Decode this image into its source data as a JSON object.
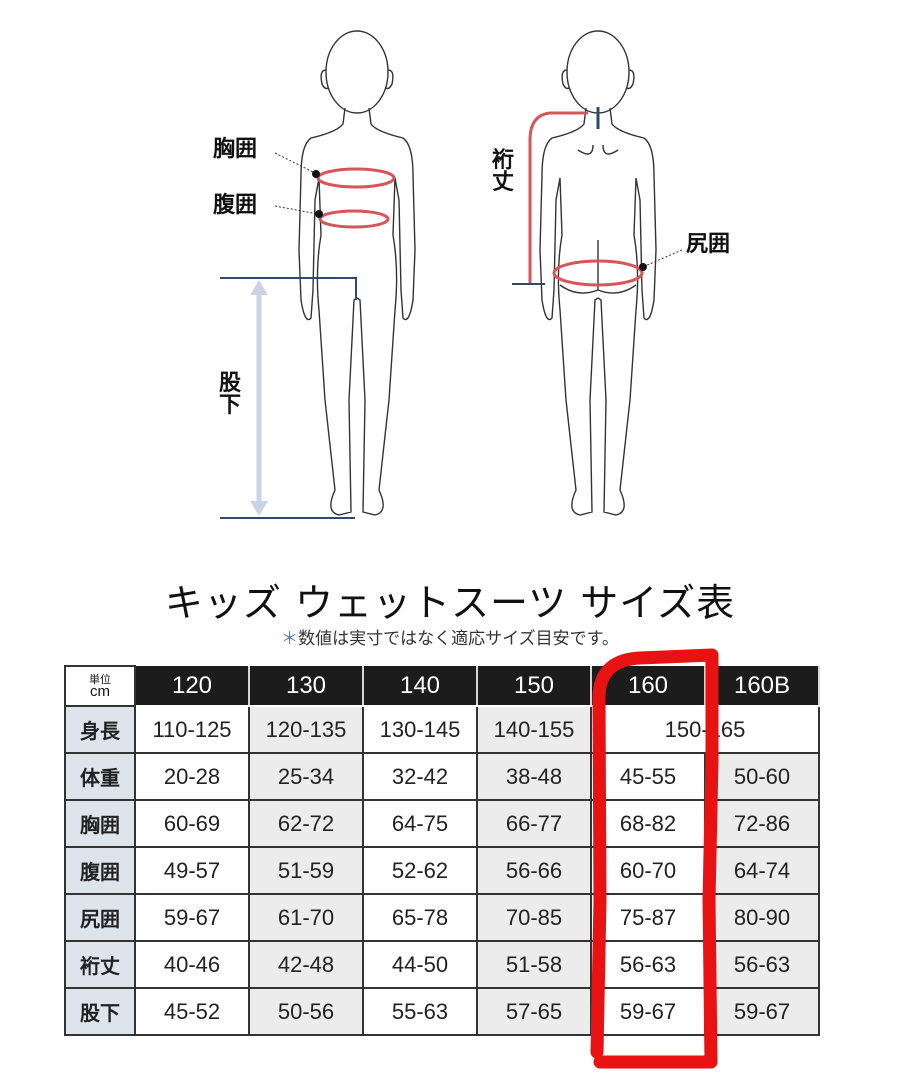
{
  "diagram": {
    "front_labels": {
      "chest": "胸囲",
      "waist": "腹囲",
      "inseam": [
        "股",
        "下"
      ]
    },
    "back_labels": {
      "sleeve": [
        "裄",
        "丈"
      ],
      "hip": "尻囲"
    },
    "colors": {
      "measure_line": "#d9545a",
      "inseam_arrow": "#c9d4e6",
      "guide": "#2f4a6b"
    }
  },
  "title": "キッズ ウェットスーツ サイズ表",
  "note": {
    "mark": "＊",
    "text": "数値は実寸ではなく適応サイズ目安です。"
  },
  "table": {
    "unit": [
      "単位",
      "cm"
    ],
    "sizes": [
      "120",
      "130",
      "140",
      "150",
      "160",
      "160B"
    ],
    "rows": [
      {
        "label": "身長",
        "values": [
          "110-125",
          "120-135",
          "130-145",
          "140-155"
        ],
        "merged": "150-165"
      },
      {
        "label": "体重",
        "values": [
          "20-28",
          "25-34",
          "32-42",
          "38-48",
          "45-55",
          "50-60"
        ]
      },
      {
        "label": "胸囲",
        "values": [
          "60-69",
          "62-72",
          "64-75",
          "66-77",
          "68-82",
          "72-86"
        ]
      },
      {
        "label": "腹囲",
        "values": [
          "49-57",
          "51-59",
          "52-62",
          "56-66",
          "60-70",
          "64-74"
        ]
      },
      {
        "label": "尻囲",
        "values": [
          "59-67",
          "61-70",
          "65-78",
          "70-85",
          "75-87",
          "80-90"
        ]
      },
      {
        "label": "裄丈",
        "values": [
          "40-46",
          "42-48",
          "44-50",
          "51-58",
          "56-63",
          "56-63"
        ]
      },
      {
        "label": "股下",
        "values": [
          "45-52",
          "50-56",
          "55-63",
          "57-65",
          "59-67",
          "59-67"
        ]
      }
    ]
  },
  "annotation": {
    "highlight_column": "160",
    "color": "#e81212"
  }
}
